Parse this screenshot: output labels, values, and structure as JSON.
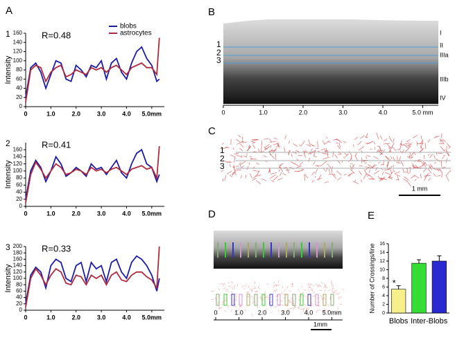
{
  "panels": {
    "A": {
      "label": "A"
    },
    "B": {
      "label": "B",
      "line_numbers": [
        "1",
        "2",
        "3"
      ],
      "layers": [
        "I",
        "II",
        "IIIa",
        "IIIb",
        "IV"
      ],
      "scale_ticks": [
        "0",
        "1.0",
        "2.0",
        "3.0",
        "4.0",
        "5.0 mm"
      ]
    },
    "C": {
      "label": "C",
      "line_numbers": [
        "1",
        "2",
        "3"
      ],
      "scale_bar": "1 mm"
    },
    "D": {
      "label": "D",
      "scale_ticks": [
        "0",
        "1.0",
        "2.0",
        "3.0",
        "4.0",
        "5.0mm"
      ],
      "scale_bar": "1mm"
    },
    "E": {
      "label": "E"
    }
  },
  "chart_data": [
    {
      "type": "line",
      "panel_number": "1",
      "annotation": "R=0.48",
      "ylabel": "Intensity",
      "legend": "upper right",
      "x": [
        0,
        0.2,
        0.4,
        0.6,
        0.8,
        1.0,
        1.2,
        1.4,
        1.6,
        1.8,
        2.0,
        2.2,
        2.4,
        2.6,
        2.8,
        3.0,
        3.2,
        3.4,
        3.6,
        3.8,
        4.0,
        4.2,
        4.4,
        4.6,
        4.8,
        5.0,
        5.2,
        5.3
      ],
      "series": [
        {
          "name": "blobs",
          "color": "#1a1aa8",
          "values": [
            20,
            85,
            95,
            75,
            40,
            70,
            100,
            95,
            60,
            55,
            90,
            80,
            65,
            90,
            85,
            100,
            60,
            95,
            105,
            75,
            60,
            95,
            120,
            130,
            105,
            90,
            55,
            60
          ]
        },
        {
          "name": "astrocytes",
          "color": "#b0283c",
          "values": [
            10,
            80,
            90,
            85,
            55,
            75,
            85,
            90,
            65,
            70,
            80,
            75,
            70,
            85,
            80,
            85,
            75,
            85,
            90,
            80,
            70,
            85,
            90,
            95,
            85,
            85,
            70,
            150
          ]
        }
      ],
      "xlim": [
        0,
        5.5
      ],
      "xticks": [
        0,
        {
          "value": 1,
          "label": "1.0"
        },
        {
          "value": 2,
          "label": "2.0"
        },
        {
          "value": 3,
          "label": "3.0"
        },
        {
          "value": 4,
          "label": "4.0"
        },
        {
          "value": 5,
          "label": "5.0mm"
        }
      ],
      "ylim": [
        0,
        160
      ],
      "yticks": [
        0,
        20,
        40,
        60,
        80,
        100,
        120,
        140,
        160
      ]
    },
    {
      "type": "line",
      "panel_number": "2",
      "annotation": "R=0.41",
      "ylabel": "Intensity",
      "x": [
        0,
        0.2,
        0.4,
        0.6,
        0.8,
        1.0,
        1.2,
        1.4,
        1.6,
        1.8,
        2.0,
        2.2,
        2.4,
        2.6,
        2.8,
        3.0,
        3.2,
        3.4,
        3.6,
        3.8,
        4.0,
        4.2,
        4.4,
        4.6,
        4.8,
        5.0,
        5.2,
        5.3
      ],
      "series": [
        {
          "color": "#1a1aa8",
          "values": [
            20,
            100,
            130,
            110,
            70,
            100,
            140,
            120,
            85,
            95,
            110,
            100,
            85,
            120,
            105,
            110,
            90,
            110,
            130,
            95,
            80,
            120,
            150,
            160,
            120,
            110,
            70,
            90
          ]
        },
        {
          "color": "#b0283c",
          "values": [
            10,
            90,
            125,
            105,
            80,
            100,
            120,
            110,
            90,
            95,
            105,
            100,
            90,
            110,
            100,
            105,
            95,
            105,
            110,
            100,
            90,
            105,
            110,
            115,
            105,
            110,
            80,
            170
          ]
        }
      ],
      "xlim": [
        0,
        5.5
      ],
      "xticks": [
        0,
        {
          "value": 1,
          "label": "1.0"
        },
        {
          "value": 2,
          "label": "2.0"
        },
        {
          "value": 3,
          "label": "3.0"
        },
        {
          "value": 4,
          "label": "4.0"
        },
        {
          "value": 5,
          "label": "5.0mm"
        }
      ],
      "ylim": [
        0,
        180
      ],
      "yticks": [
        0,
        20,
        40,
        60,
        80,
        100,
        120,
        140,
        160
      ]
    },
    {
      "type": "line",
      "panel_number": "3",
      "annotation": "R=0.33",
      "ylabel": "Intensity",
      "x": [
        0,
        0.2,
        0.4,
        0.6,
        0.8,
        1.0,
        1.2,
        1.4,
        1.6,
        1.8,
        2.0,
        2.2,
        2.4,
        2.6,
        2.8,
        3.0,
        3.2,
        3.4,
        3.6,
        3.8,
        4.0,
        4.2,
        4.4,
        4.6,
        4.8,
        5.0,
        5.2,
        5.3
      ],
      "series": [
        {
          "color": "#1a1aa8",
          "values": [
            20,
            110,
            135,
            120,
            70,
            140,
            160,
            150,
            100,
            90,
            140,
            150,
            90,
            150,
            130,
            140,
            90,
            150,
            160,
            120,
            100,
            150,
            170,
            160,
            140,
            110,
            60,
            100
          ]
        },
        {
          "color": "#b0283c",
          "values": [
            10,
            100,
            130,
            110,
            80,
            110,
            130,
            120,
            85,
            80,
            110,
            105,
            80,
            110,
            100,
            110,
            80,
            110,
            120,
            95,
            90,
            110,
            120,
            120,
            105,
            95,
            70,
            200
          ]
        }
      ],
      "xlim": [
        0,
        5.5
      ],
      "xticks": [
        0,
        {
          "value": 1,
          "label": "1.0"
        },
        {
          "value": 2,
          "label": "2.0"
        },
        {
          "value": 3,
          "label": "3.0"
        },
        {
          "value": 4,
          "label": "4.0"
        },
        {
          "value": 5,
          "label": "5.0mm"
        }
      ],
      "ylim": [
        0,
        200
      ],
      "yticks": [
        0,
        20,
        40,
        60,
        80,
        100,
        120,
        140,
        160,
        180,
        200
      ]
    },
    {
      "type": "bar",
      "ylabel": "Number of Crossings/line",
      "annotation": "*",
      "categories": [
        "Blobs",
        "Inter-Blobs",
        null
      ],
      "values": [
        5.5,
        11.5,
        12
      ],
      "errors": [
        0.8,
        0.8,
        1.2
      ],
      "colors": [
        "#f6ef8a",
        "#33dd33",
        "#2a2ad0"
      ],
      "ylim": [
        0,
        16
      ],
      "yticks": [
        0,
        2,
        4,
        6,
        8,
        10,
        12,
        14,
        16
      ]
    }
  ]
}
